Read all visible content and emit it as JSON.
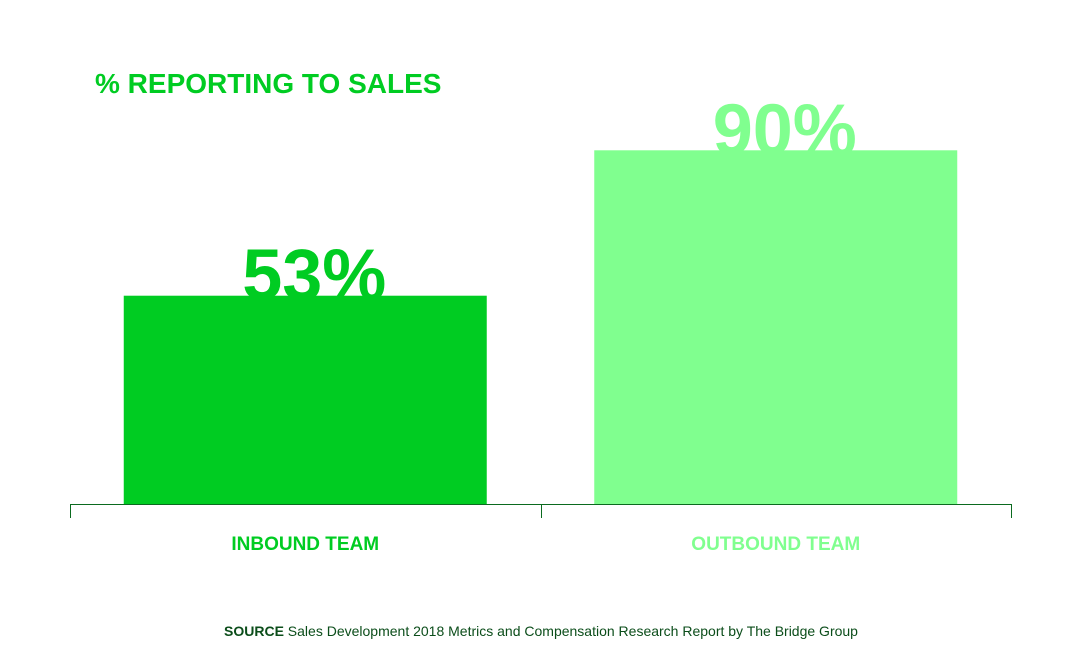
{
  "chart_data": {
    "type": "bar",
    "title": "% REPORTING TO SALES",
    "categories": [
      "INBOUND TEAM",
      "OUTBOUND TEAM"
    ],
    "values": [
      53,
      90
    ],
    "data_labels": [
      "53%",
      "90%"
    ],
    "ylim": [
      0,
      100
    ],
    "xlabel": "",
    "ylabel": "",
    "grid": false,
    "legend": "none",
    "colors": [
      "#00cc22",
      "#80ff8f"
    ]
  },
  "footer": {
    "source_label": "SOURCE",
    "source_text": " Sales Development 2018 Metrics and Compensation Research Report by The Bridge Group"
  },
  "theme": {
    "title_color": "#00cc22",
    "axis_color": "#0b6a1f",
    "source_color": "#0b4d1a"
  }
}
